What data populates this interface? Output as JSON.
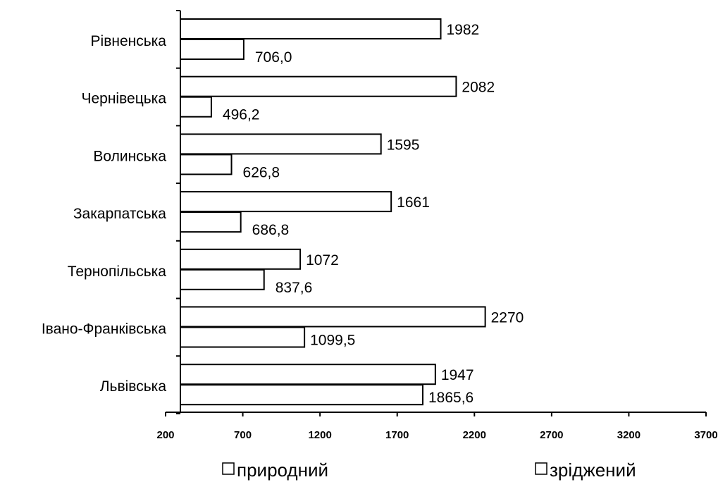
{
  "chart_data": {
    "type": "bar",
    "orientation": "horizontal",
    "categories": [
      "Рівненська",
      "Чернівецька",
      "Волинська",
      "Закарпатська",
      "Тернопільська",
      "Івано-Франківська",
      "Львівська"
    ],
    "series": [
      {
        "name": "природний",
        "values": [
          1982,
          2082,
          1595,
          1661,
          1072,
          2270,
          1947
        ]
      },
      {
        "name": "зріджений",
        "values": [
          706.0,
          496.2,
          626.8,
          686.8,
          837.6,
          1099.5,
          1865.6
        ]
      }
    ],
    "value_labels": [
      [
        "1982",
        "2082",
        "1595",
        "1661",
        "1072",
        "2270",
        "1947"
      ],
      [
        "706,0",
        "496,2",
        "626,8",
        "686,8",
        "837,6",
        "1099,5",
        "1865,6"
      ]
    ],
    "xlim": [
      200,
      3700
    ],
    "axis_start": 337,
    "xticks": [
      200,
      700,
      1200,
      1700,
      2200,
      2700,
      3200,
      3700
    ],
    "xtick_labels": [
      "200",
      "700",
      "1200",
      "1700",
      "2200",
      "2700",
      "3200",
      "3700"
    ],
    "bar_fill": "#ffffff",
    "bar_stroke": "#000000",
    "grid": false,
    "legend_position": "bottom",
    "legend": [
      "природний",
      "зріджений"
    ]
  }
}
